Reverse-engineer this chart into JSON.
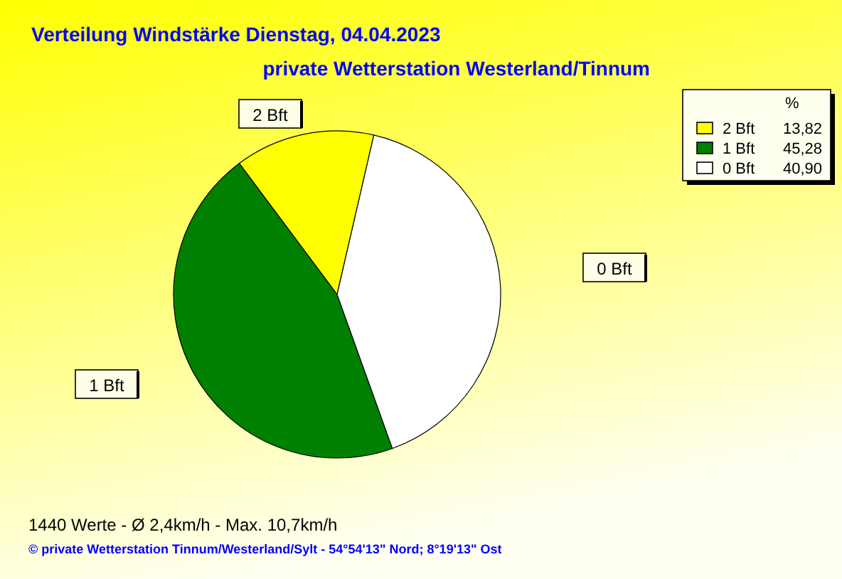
{
  "chart_data": {
    "type": "pie",
    "title": "Verteilung Windstärke  Dienstag, 04.04.2023",
    "subtitle": "private Wetterstation Westerland/Tinnum",
    "categories": [
      "2 Bft",
      "1 Bft",
      "0 Bft"
    ],
    "values": [
      13.82,
      45.28,
      40.9
    ],
    "value_labels": [
      "13,82",
      "45,28",
      "40,90"
    ],
    "colors": [
      "#ffff00",
      "#008000",
      "#ffffff"
    ],
    "legend": "top right",
    "legend_title": "%",
    "annotations": [
      "1440 Werte   -   Ø 2,4km/h  -  Max. 10,7km/h",
      "© private Wetterstation Tinnum/Westerland/Sylt   -   54°54'13\" Nord; 8°19'13\" Ost"
    ]
  }
}
